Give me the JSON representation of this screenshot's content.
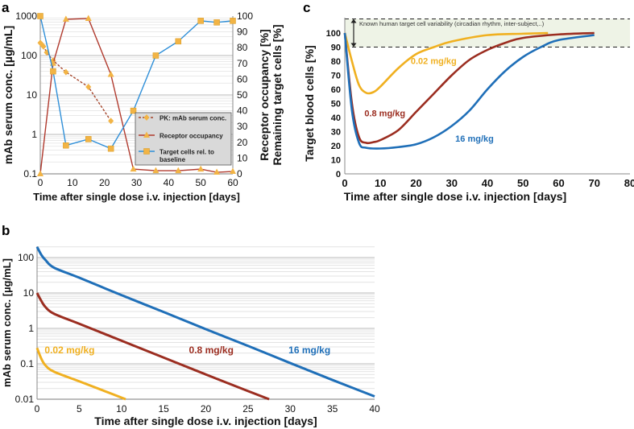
{
  "chart_data": [
    {
      "panel": "a",
      "type": "line",
      "xlabel": "Time after single dose i.v. injection [days]",
      "ylabel": "mAb serum conc. [µg/mL]",
      "y2label_line1": "Receptor occupancy [%]",
      "y2label_line2": "Remaining target cells [%]",
      "xlim": [
        0,
        60
      ],
      "xticks": [
        0,
        10,
        20,
        30,
        40,
        50,
        60
      ],
      "ylim": [
        0.1,
        1000
      ],
      "yscale": "log",
      "yticks": [
        "0.1",
        "1",
        "10",
        "100",
        "1000"
      ],
      "y2lim": [
        0,
        100
      ],
      "y2ticks": [
        0,
        10,
        20,
        30,
        40,
        50,
        60,
        70,
        80,
        90,
        100
      ],
      "grid": true,
      "legend_position": "bottom-right",
      "series": [
        {
          "name": "PK: mAb serum conc.",
          "axis": "left",
          "color": "#a5452b",
          "marker": "diamond",
          "dashed": true,
          "x": [
            0,
            0.5,
            1,
            2,
            4,
            8,
            15,
            22
          ],
          "y": [
            210,
            190,
            170,
            120,
            75,
            38,
            16,
            2.2
          ]
        },
        {
          "name": "Receptor occupancy",
          "axis": "right",
          "color": "#b03a2e",
          "marker": "triangle",
          "dashed": false,
          "x": [
            0,
            4,
            8,
            15,
            22,
            29,
            36,
            43,
            50,
            55,
            60
          ],
          "y": [
            0,
            70,
            98,
            98.5,
            63,
            3,
            2,
            2,
            3,
            1,
            1.5
          ]
        },
        {
          "name_line1": "Target cells rel. to",
          "name_line2": "baseline",
          "axis": "right",
          "color": "#2f8fd8",
          "marker": "square",
          "dashed": false,
          "x": [
            0,
            4,
            8,
            15,
            22,
            29,
            36,
            43,
            50,
            55,
            60
          ],
          "y": [
            100,
            65,
            18,
            22,
            16,
            40,
            75,
            84,
            97,
            96,
            97
          ]
        }
      ],
      "marker_color": "#f2b445"
    },
    {
      "panel": "b",
      "type": "line",
      "xlabel": "Time after single dose i.v. injection [days]",
      "ylabel": "mAb serum conc. [µg/mL]",
      "xlim": [
        0,
        40
      ],
      "xticks": [
        0,
        5,
        10,
        15,
        20,
        25,
        30,
        35,
        40
      ],
      "ylim": [
        0.01,
        200
      ],
      "yscale": "log",
      "yticks": [
        "0.01",
        "0.1",
        "1",
        "10",
        "100"
      ],
      "grid": true,
      "series": [
        {
          "name": "16 mg/kg",
          "color": "#1f6fb8",
          "x": [
            0,
            0.5,
            1,
            2,
            5,
            10,
            15,
            20,
            25,
            30,
            35,
            40
          ],
          "y": [
            200,
            120,
            85,
            52,
            27,
            8.7,
            2.9,
            0.95,
            0.32,
            0.105,
            0.035,
            0.012
          ]
        },
        {
          "name": "0.8 mg/kg",
          "color": "#9b2d20",
          "x": [
            0,
            0.5,
            1,
            2,
            5,
            10,
            15,
            20,
            25,
            27.5
          ],
          "y": [
            10,
            6,
            4,
            2.6,
            1.35,
            0.45,
            0.15,
            0.05,
            0.017,
            0.01
          ]
        },
        {
          "name": "0.02 mg/kg",
          "color": "#f0b020",
          "x": [
            0,
            0.5,
            1,
            2,
            5,
            8,
            10.5
          ],
          "y": [
            0.28,
            0.14,
            0.09,
            0.06,
            0.032,
            0.017,
            0.01
          ]
        }
      ]
    },
    {
      "panel": "c",
      "type": "line",
      "xlabel": "Time after single dose i.v. injection [days]",
      "ylabel": "Target blood cells [%]",
      "xlim": [
        0,
        80
      ],
      "xticks": [
        0,
        10,
        20,
        30,
        40,
        50,
        60,
        70,
        80
      ],
      "ylim": [
        0,
        110
      ],
      "yticks": [
        0,
        10,
        20,
        30,
        40,
        50,
        60,
        70,
        80,
        90,
        100
      ],
      "band": {
        "from": 90,
        "to": 110,
        "label": "Known human target cell variability (circadian rhythm, inter-subject,..)"
      },
      "series": [
        {
          "name": "0.02 mg/kg",
          "color": "#f0b020",
          "x": [
            0,
            2,
            4,
            6,
            8,
            10,
            15,
            20,
            25,
            30,
            40,
            50,
            57
          ],
          "y": [
            100,
            80,
            63,
            57.5,
            58,
            62,
            75,
            85,
            90,
            94,
            98.5,
            99.5,
            100
          ]
        },
        {
          "name": "0.8 mg/kg",
          "color": "#9b2d20",
          "x": [
            0,
            2,
            4,
            6,
            8,
            10,
            15,
            20,
            25,
            30,
            35,
            40,
            45,
            50,
            60,
            70
          ],
          "y": [
            100,
            50,
            26,
            22,
            22.5,
            24,
            31,
            44,
            57,
            70,
            81,
            88,
            93,
            96.5,
            99,
            100
          ]
        },
        {
          "name": "16 mg/kg",
          "color": "#1f6fb8",
          "x": [
            0,
            2,
            4,
            6,
            10,
            15,
            20,
            25,
            30,
            35,
            40,
            45,
            50,
            55,
            60,
            70
          ],
          "y": [
            100,
            45,
            22,
            18.5,
            18,
            19,
            21,
            26,
            34,
            45,
            60,
            73,
            83,
            90,
            95,
            98.5
          ]
        }
      ]
    }
  ],
  "panel_labels": {
    "a": "a",
    "b": "b",
    "c": "c"
  }
}
